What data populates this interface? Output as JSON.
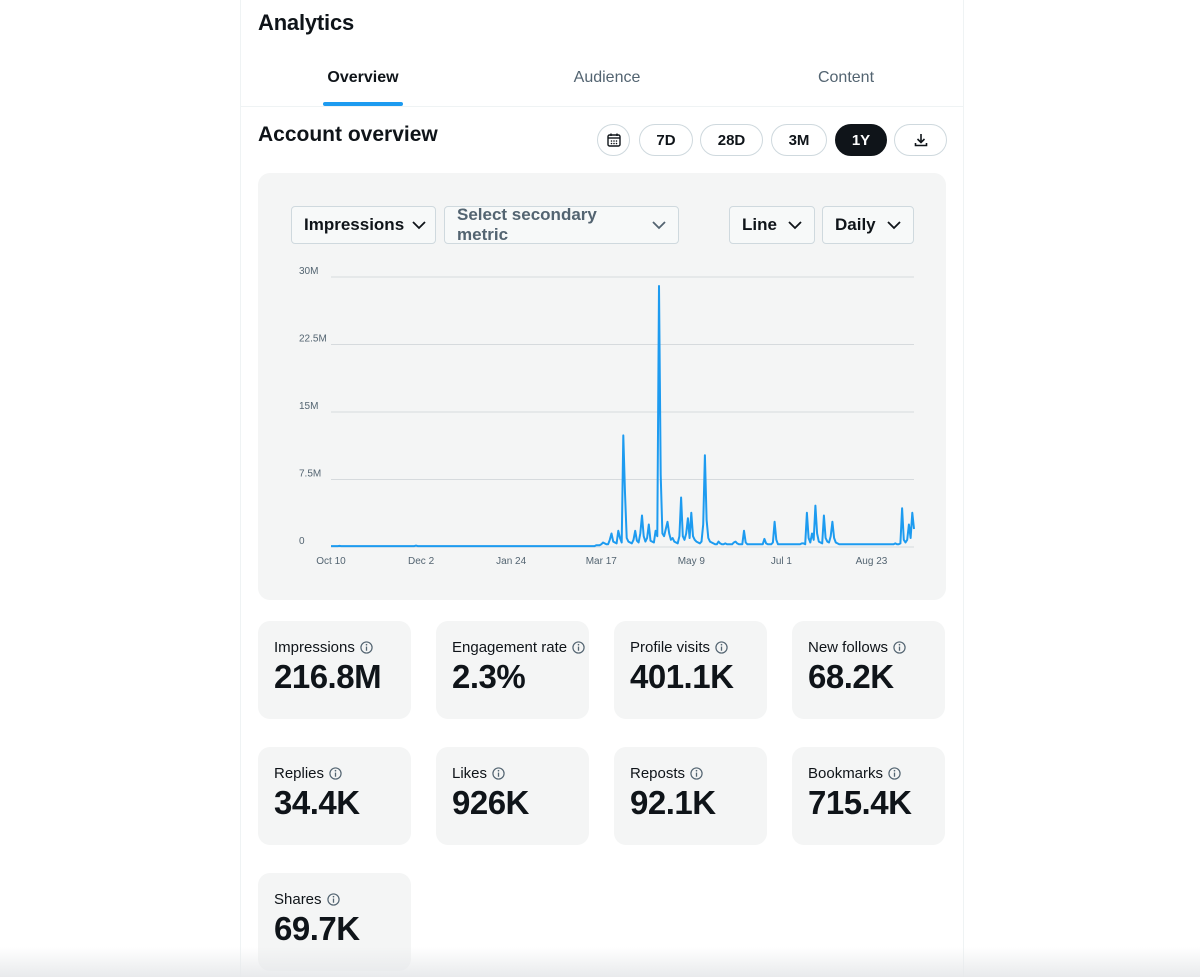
{
  "header": {
    "title": "Analytics"
  },
  "tabs": [
    {
      "label": "Overview",
      "active": true
    },
    {
      "label": "Audience",
      "active": false
    },
    {
      "label": "Content",
      "active": false
    }
  ],
  "overview": {
    "title": "Account overview",
    "range_buttons": [
      {
        "label": "7D",
        "active": false
      },
      {
        "label": "28D",
        "active": false
      },
      {
        "label": "3M",
        "active": false
      },
      {
        "label": "1Y",
        "active": true
      }
    ],
    "calendar_icon": "calendar-icon",
    "download_icon": "download-icon"
  },
  "controls": {
    "primary_metric": "Impressions",
    "secondary_metric_placeholder": "Select secondary metric",
    "chart_type": "Line",
    "granularity": "Daily"
  },
  "colors": {
    "accent": "#1d9bf0",
    "text": "#0f1419",
    "muted": "#536471",
    "card_bg": "#f4f5f5"
  },
  "chart_data": {
    "type": "line",
    "series": [
      {
        "values": [
          0.1,
          0.1,
          0.1,
          0.1,
          0.1,
          0.12,
          0.1,
          0.1,
          0.1,
          0.1,
          0.1,
          0.1,
          0.1,
          0.1,
          0.1,
          0.1,
          0.1,
          0.1,
          0.1,
          0.1,
          0.1,
          0.1,
          0.1,
          0.1,
          0.1,
          0.1,
          0.1,
          0.1,
          0.1,
          0.1,
          0.1,
          0.1,
          0.1,
          0.1,
          0.1,
          0.1,
          0.1,
          0.1,
          0.1,
          0.1,
          0.1,
          0.1,
          0.1,
          0.1,
          0.1,
          0.1,
          0.1,
          0.1,
          0.1,
          0.1,
          0.15,
          0.1,
          0.1,
          0.1,
          0.1,
          0.1,
          0.1,
          0.1,
          0.1,
          0.1,
          0.1,
          0.1,
          0.1,
          0.1,
          0.1,
          0.1,
          0.1,
          0.1,
          0.1,
          0.1,
          0.1,
          0.1,
          0.1,
          0.1,
          0.1,
          0.1,
          0.1,
          0.1,
          0.1,
          0.1,
          0.1,
          0.1,
          0.1,
          0.1,
          0.1,
          0.1,
          0.1,
          0.1,
          0.1,
          0.1,
          0.1,
          0.1,
          0.1,
          0.1,
          0.1,
          0.1,
          0.1,
          0.1,
          0.1,
          0.1,
          0.1,
          0.1,
          0.1,
          0.1,
          0.1,
          0.1,
          0.1,
          0.1,
          0.1,
          0.1,
          0.1,
          0.1,
          0.1,
          0.1,
          0.1,
          0.1,
          0.1,
          0.1,
          0.1,
          0.1,
          0.1,
          0.1,
          0.1,
          0.1,
          0.1,
          0.1,
          0.1,
          0.1,
          0.1,
          0.1,
          0.1,
          0.1,
          0.1,
          0.1,
          0.1,
          0.1,
          0.1,
          0.1,
          0.1,
          0.1,
          0.1,
          0.1,
          0.1,
          0.1,
          0.1,
          0.1,
          0.1,
          0.1,
          0.1,
          0.1,
          0.1,
          0.1,
          0.1,
          0.1,
          0.1,
          0.1,
          0.2,
          0.2,
          0.2,
          0.3,
          0.5,
          0.4,
          0.3,
          0.3,
          0.8,
          1.5,
          0.6,
          0.5,
          0.4,
          1.8,
          1.0,
          0.5,
          12.4,
          6.0,
          1.0,
          0.6,
          0.5,
          0.4,
          0.8,
          1.8,
          0.7,
          0.5,
          1.5,
          3.5,
          1.2,
          0.6,
          1.0,
          2.5,
          0.7,
          0.6,
          0.5,
          1.8,
          1.2,
          29.0,
          8.0,
          1.5,
          1.2,
          2.0,
          2.8,
          1.5,
          0.8,
          1.0,
          0.6,
          0.5,
          0.4,
          1.2,
          5.5,
          1.2,
          0.8,
          1.5,
          3.2,
          1.0,
          3.8,
          1.2,
          0.8,
          0.6,
          0.5,
          0.4,
          0.6,
          2.5,
          10.2,
          3.0,
          1.0,
          0.6,
          0.5,
          0.4,
          0.3,
          0.3,
          0.6,
          0.4,
          0.3,
          0.3,
          0.4,
          0.3,
          0.3,
          0.3,
          0.3,
          0.5,
          0.6,
          0.4,
          0.3,
          0.3,
          0.3,
          1.8,
          0.5,
          0.3,
          0.3,
          0.3,
          0.3,
          0.3,
          0.3,
          0.3,
          0.3,
          0.3,
          0.3,
          0.9,
          0.4,
          0.3,
          0.3,
          0.3,
          0.5,
          2.8,
          0.8,
          0.3,
          0.3,
          0.3,
          0.3,
          0.3,
          0.3,
          0.3,
          0.3,
          0.3,
          0.3,
          0.3,
          0.3,
          0.3,
          0.3,
          0.4,
          0.4,
          0.3,
          3.8,
          1.0,
          0.5,
          1.5,
          0.8,
          4.6,
          1.5,
          0.6,
          0.5,
          0.4,
          3.5,
          1.0,
          0.6,
          0.5,
          1.2,
          2.8,
          1.0,
          0.5,
          0.4,
          0.3,
          0.3,
          0.3,
          0.3,
          0.3,
          0.3,
          0.3,
          0.3,
          0.3,
          0.3,
          0.3,
          0.3,
          0.3,
          0.3,
          0.3,
          0.3,
          0.3,
          0.3,
          0.3,
          0.3,
          0.3,
          0.3,
          0.3,
          0.3,
          0.3,
          0.3,
          0.3,
          0.3,
          0.3,
          0.3,
          0.3,
          0.3,
          0.3,
          0.4,
          0.3,
          0.3,
          0.4,
          4.3,
          0.8,
          0.5,
          0.8,
          2.5,
          1.0,
          3.8,
          2.0
        ]
      }
    ],
    "y_ticks": [
      "30M",
      "22.5M",
      "15M",
      "7.5M",
      "0"
    ],
    "y_tick_values": [
      30,
      22.5,
      15,
      7.5,
      0
    ],
    "x_ticks": [
      "Oct 10",
      "Dec 2",
      "Jan 24",
      "Mar 17",
      "May 9",
      "Jul 1",
      "Aug 23"
    ],
    "x_tick_index": [
      0,
      53,
      106,
      159,
      212,
      265,
      318
    ],
    "ylim": [
      0,
      30
    ],
    "grid": true
  },
  "stats": [
    {
      "label": "Impressions",
      "value": "216.8M"
    },
    {
      "label": "Engagement rate",
      "value": "2.3%"
    },
    {
      "label": "Profile visits",
      "value": "401.1K"
    },
    {
      "label": "New follows",
      "value": "68.2K"
    },
    {
      "label": "Replies",
      "value": "34.4K"
    },
    {
      "label": "Likes",
      "value": "926K"
    },
    {
      "label": "Reposts",
      "value": "92.1K"
    },
    {
      "label": "Bookmarks",
      "value": "715.4K"
    },
    {
      "label": "Shares",
      "value": "69.7K"
    }
  ]
}
